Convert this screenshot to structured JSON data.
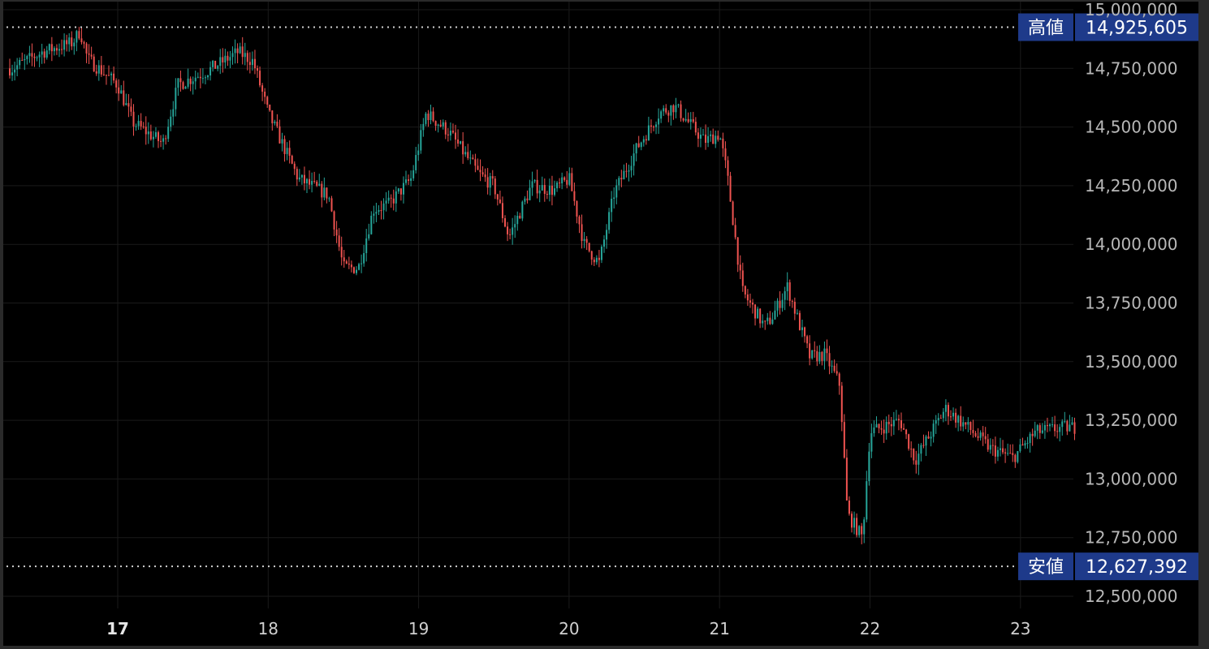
{
  "chart_data": {
    "type": "candlestick",
    "title": "",
    "xlabel": "",
    "ylabel": "",
    "x_tick_labels": [
      "17",
      "18",
      "19",
      "20",
      "21",
      "22",
      "23"
    ],
    "x_tick_bold": [
      "17"
    ],
    "y_tick_labels": [
      "15,000,000",
      "14,750,000",
      "14,500,000",
      "14,250,000",
      "14,000,000",
      "13,750,000",
      "13,500,000",
      "13,250,000",
      "13,000,000",
      "12,750,000",
      "12,500,000"
    ],
    "ylim": [
      12450000,
      15050000
    ],
    "grid": true,
    "colors": {
      "up": "#26a69a",
      "down": "#ef5350",
      "background": "#000000",
      "grid": "#1a1a1a",
      "badge": "#1e3a8a",
      "axis_text": "#b8b8b8"
    },
    "high_marker": {
      "label": "高値",
      "value_label": "14,925,605",
      "value": 14925605
    },
    "low_marker": {
      "label": "安値",
      "value_label": "12,627,392",
      "value": 12627392
    },
    "close_path": {
      "day": [
        16.3,
        16.5,
        16.7,
        16.75,
        16.8,
        17.0,
        17.1,
        17.3,
        17.4,
        17.6,
        17.8,
        17.9,
        18.0,
        18.2,
        18.4,
        18.5,
        18.6,
        18.7,
        18.8,
        18.95,
        19.05,
        19.2,
        19.4,
        19.5,
        19.6,
        19.75,
        19.9,
        20.0,
        20.1,
        20.2,
        20.3,
        20.45,
        20.6,
        20.7,
        20.9,
        21.0,
        21.05,
        21.15,
        21.3,
        21.35,
        21.45,
        21.55,
        21.6,
        21.7,
        21.8,
        21.85,
        21.95,
        22.0,
        22.2,
        22.3,
        22.5,
        22.65,
        22.8,
        22.95,
        23.1,
        23.3
      ],
      "price": [
        14750000,
        14820000,
        14860000,
        14910000,
        14790000,
        14680000,
        14520000,
        14430000,
        14680000,
        14740000,
        14820000,
        14780000,
        14560000,
        14280000,
        14210000,
        13900000,
        13900000,
        14150000,
        14170000,
        14280000,
        14560000,
        14480000,
        14300000,
        14250000,
        14030000,
        14250000,
        14230000,
        14280000,
        14000000,
        13920000,
        14220000,
        14410000,
        14560000,
        14590000,
        14440000,
        14470000,
        14300000,
        13800000,
        13650000,
        13690000,
        13820000,
        13620000,
        13520000,
        13530000,
        13400000,
        12850000,
        12750000,
        13200000,
        13250000,
        13080000,
        13300000,
        13220000,
        13130000,
        13090000,
        13200000,
        13220000
      ]
    }
  }
}
